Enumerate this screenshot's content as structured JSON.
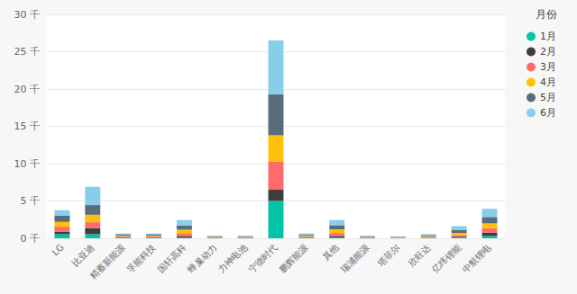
{
  "chart_data": {
    "type": "bar",
    "stacked": true,
    "categories": [
      "LG",
      "比亚迪",
      "精蓄新能源",
      "孚能科技",
      "国轩高科",
      "蜂巢动力",
      "力神电池",
      "宁德时代",
      "鹏辉能源",
      "其他",
      "瑞浦能源",
      "塔菲尔",
      "欣旺达",
      "亿纬锂能",
      "中航锂电"
    ],
    "series": [
      {
        "name": "1月",
        "color": "#00C4A7",
        "values": [
          0.55,
          0.55,
          0.08,
          0.08,
          0.1,
          0.04,
          0.04,
          5.0,
          0.04,
          0.1,
          0.04,
          0.03,
          0.04,
          0.1,
          0.3
        ]
      },
      {
        "name": "2月",
        "color": "#3D3D3D",
        "values": [
          0.35,
          0.8,
          0.08,
          0.08,
          0.15,
          0.04,
          0.04,
          1.5,
          0.06,
          0.2,
          0.04,
          0.03,
          0.04,
          0.12,
          0.45
        ]
      },
      {
        "name": "3月",
        "color": "#FF6B6B",
        "values": [
          0.65,
          0.8,
          0.1,
          0.1,
          0.35,
          0.06,
          0.06,
          3.8,
          0.1,
          0.4,
          0.06,
          0.04,
          0.08,
          0.2,
          0.6
        ]
      },
      {
        "name": "4月",
        "color": "#FFC107",
        "values": [
          0.65,
          1.0,
          0.1,
          0.1,
          0.55,
          0.06,
          0.06,
          3.5,
          0.12,
          0.5,
          0.06,
          0.04,
          0.1,
          0.3,
          0.65
        ]
      },
      {
        "name": "5月",
        "color": "#5A6B7B",
        "values": [
          0.85,
          1.3,
          0.12,
          0.12,
          0.55,
          0.08,
          0.08,
          5.5,
          0.14,
          0.55,
          0.08,
          0.06,
          0.12,
          0.35,
          0.85
        ]
      },
      {
        "name": "6月",
        "color": "#87CEEB",
        "values": [
          0.7,
          2.45,
          0.15,
          0.15,
          0.75,
          0.08,
          0.08,
          7.2,
          0.18,
          0.7,
          0.08,
          0.06,
          0.18,
          0.55,
          1.1
        ]
      }
    ],
    "ylim": [
      0,
      30
    ],
    "yticks": [
      {
        "value": 0,
        "label": "0 千"
      },
      {
        "value": 5,
        "label": "5 千"
      },
      {
        "value": 10,
        "label": "10 千"
      },
      {
        "value": 15,
        "label": "15 千"
      },
      {
        "value": 20,
        "label": "20 千"
      },
      {
        "value": 25,
        "label": "25 千"
      },
      {
        "value": 30,
        "label": "30 千"
      }
    ],
    "grid": true,
    "legend": "upper right",
    "legend_title": "月份"
  }
}
